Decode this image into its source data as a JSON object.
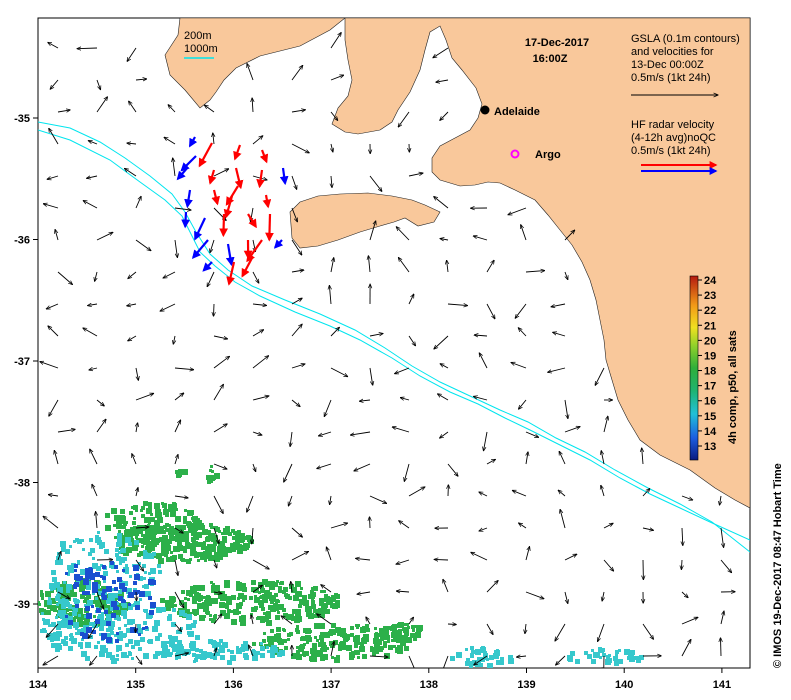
{
  "date_line1": "17-Dec-2017",
  "date_line2": "16:00Z",
  "depth_legend": {
    "d200": "200m",
    "d1000": "1000m"
  },
  "gsla_legend": {
    "line1": "GSLA (0.1m contours)",
    "line2": "and velocities for",
    "line3": "13-Dec 00:00Z",
    "line4": "0.5m/s (1kt 24h)"
  },
  "hf_legend": {
    "line1": "HF radar velocity",
    "line2": "(4-12h avg)noQC",
    "line3": "0.5m/s (1kt 24h)"
  },
  "places": {
    "adelaide": "Adelaide",
    "argo": "Argo"
  },
  "colorbar": {
    "title": "4h comp, p50, all sats",
    "ticks": [
      "24",
      "23",
      "22",
      "21",
      "20",
      "19",
      "18",
      "17",
      "16",
      "15",
      "14",
      "13"
    ]
  },
  "credit": "© IMOS 19-Dec-2017 08:47 Hobart Time",
  "x_ticks": [
    "134",
    "135",
    "136",
    "137",
    "138",
    "139",
    "140",
    "141"
  ],
  "y_ticks": [
    "-35",
    "-36",
    "-37",
    "-38",
    "-39"
  ],
  "colors": {
    "land": "#f9c89b",
    "isobath": "#00e5ee",
    "hf_red": "#ff0000",
    "hf_blue": "#0000ff",
    "sst_green": "#2cb04a",
    "sst_cyan": "#36c8cc",
    "sst_blue": "#1a4fd0"
  }
}
